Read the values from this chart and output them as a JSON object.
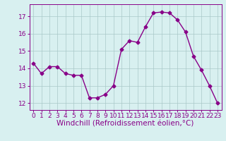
{
  "x": [
    0,
    1,
    2,
    3,
    4,
    5,
    6,
    7,
    8,
    9,
    10,
    11,
    12,
    13,
    14,
    15,
    16,
    17,
    18,
    19,
    20,
    21,
    22,
    23
  ],
  "y": [
    14.3,
    13.7,
    14.1,
    14.1,
    13.7,
    13.6,
    13.6,
    12.3,
    12.3,
    12.5,
    13.0,
    15.1,
    15.6,
    15.5,
    16.4,
    17.2,
    17.25,
    17.2,
    16.8,
    16.1,
    14.7,
    13.9,
    13.0,
    12.0
  ],
  "line_color": "#880088",
  "marker": "D",
  "markersize": 2.5,
  "linewidth": 1.0,
  "bg_color": "#d8f0f0",
  "grid_color": "#aac8c8",
  "xlabel": "Windchill (Refroidissement éolien,°C)",
  "xlabel_fontsize": 7.5,
  "tick_fontsize": 6.5,
  "ytick_labels": [
    "12",
    "13",
    "14",
    "15",
    "16",
    "17"
  ],
  "ytick_vals": [
    12,
    13,
    14,
    15,
    16,
    17
  ],
  "ylim": [
    11.6,
    17.7
  ],
  "xlim": [
    -0.5,
    23.5
  ]
}
